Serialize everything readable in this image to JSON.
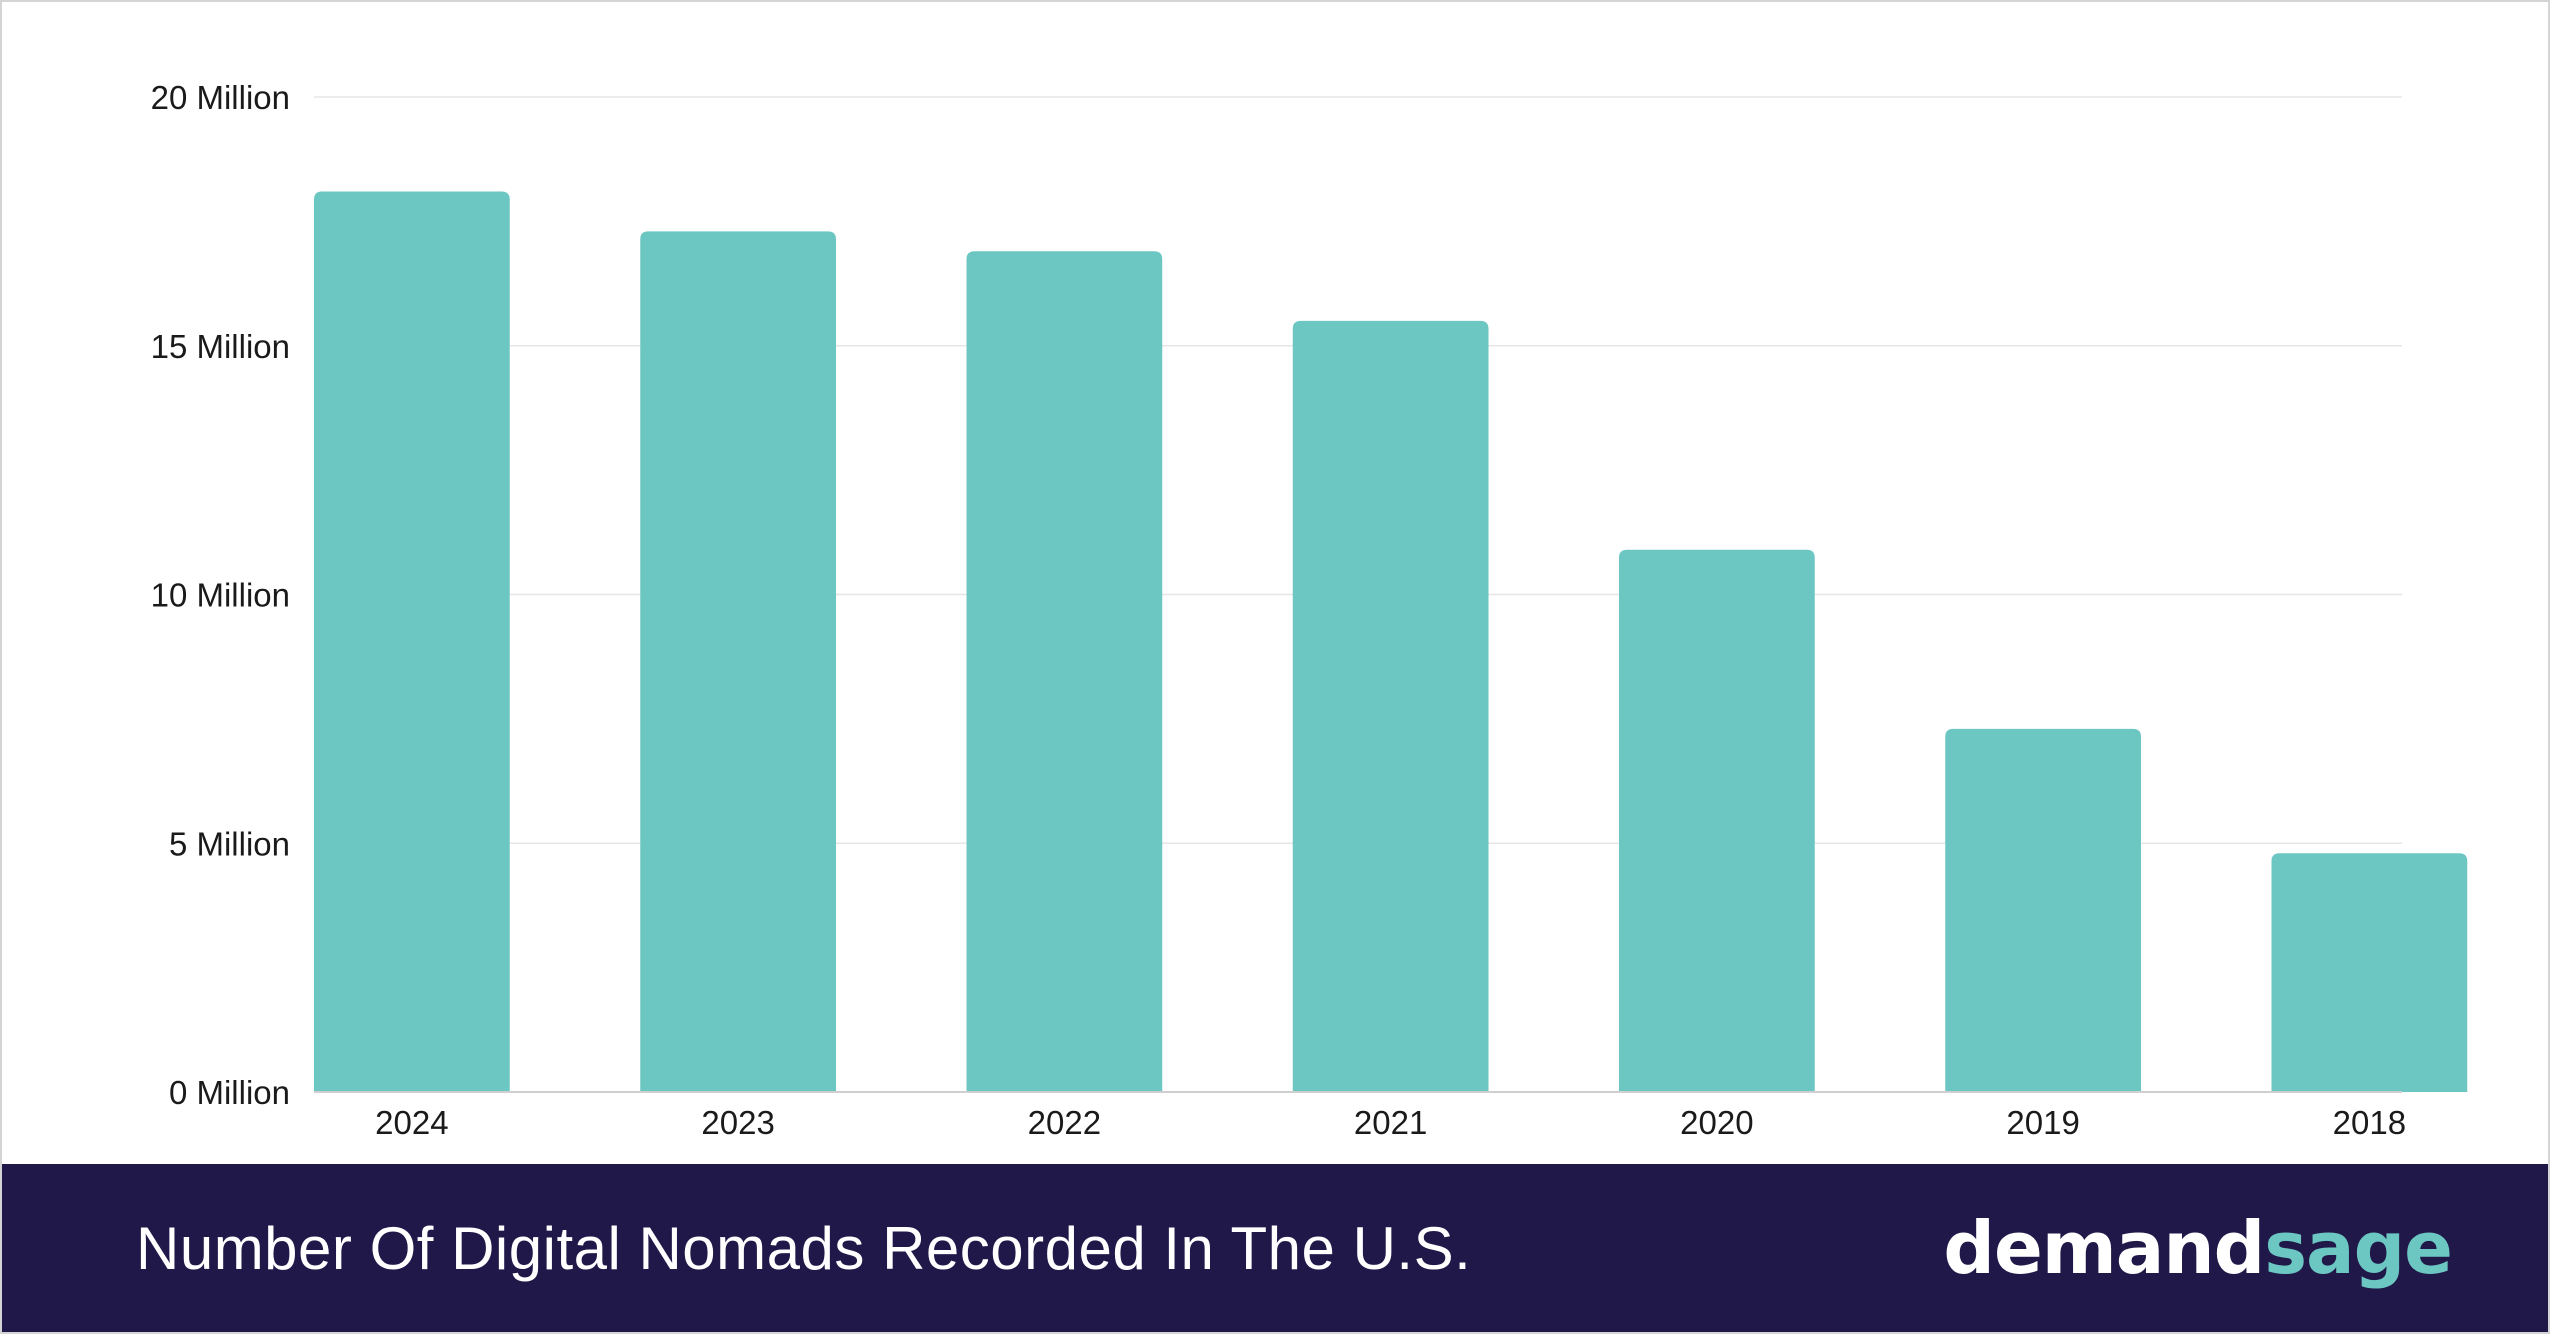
{
  "footer": {
    "title": "Number Of Digital Nomads Recorded In The U.S.",
    "brand_primary": "demand",
    "brand_accent": "sage"
  },
  "colors": {
    "bar": "#6cc7c3",
    "footer_bg": "#1f1848",
    "brand_accent": "#6cc7c3",
    "grid": "#e6e6e6"
  },
  "chart_data": {
    "type": "bar",
    "title": "Number Of Digital Nomads Recorded In The U.S.",
    "xlabel": "",
    "ylabel": "",
    "categories": [
      "2024",
      "2023",
      "2022",
      "2021",
      "2020",
      "2019",
      "2018"
    ],
    "values": [
      18.1,
      17.3,
      16.9,
      15.5,
      10.9,
      7.3,
      4.8
    ],
    "units": "Million",
    "ylim": [
      0,
      20
    ],
    "yticks": [
      {
        "value": 0,
        "label": "0 Million"
      },
      {
        "value": 5,
        "label": "5 Million"
      },
      {
        "value": 10,
        "label": "10 Million"
      },
      {
        "value": 15,
        "label": "15 Million"
      },
      {
        "value": 20,
        "label": "20 Million"
      }
    ],
    "grid": true,
    "legend": "none"
  }
}
